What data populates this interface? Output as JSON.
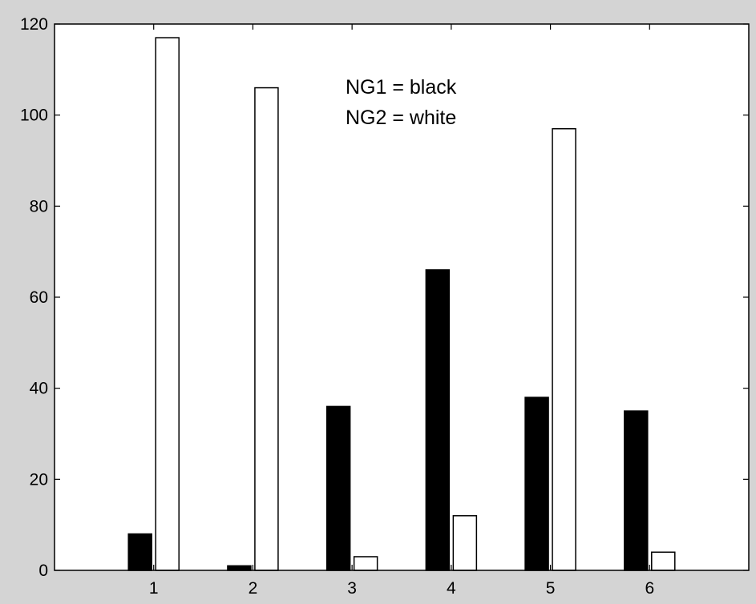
{
  "chart_data": {
    "type": "bar",
    "categories": [
      "1",
      "2",
      "3",
      "4",
      "5",
      "6"
    ],
    "series": [
      {
        "values": [
          8,
          1,
          36,
          66,
          38,
          35
        ],
        "color": "#000000"
      },
      {
        "values": [
          117,
          106,
          3,
          12,
          97,
          4
        ],
        "color": "#ffffff"
      }
    ],
    "ylim": [
      0,
      120
    ],
    "xlim": [
      0,
      7
    ],
    "yticks": [
      "0",
      "20",
      "40",
      "60",
      "80",
      "100",
      "120"
    ],
    "annotation": [
      "NG1 = black",
      "NG2 = white"
    ],
    "grid": false,
    "background_color": "#d4d4d4",
    "plot_background_color": "#ffffff"
  }
}
